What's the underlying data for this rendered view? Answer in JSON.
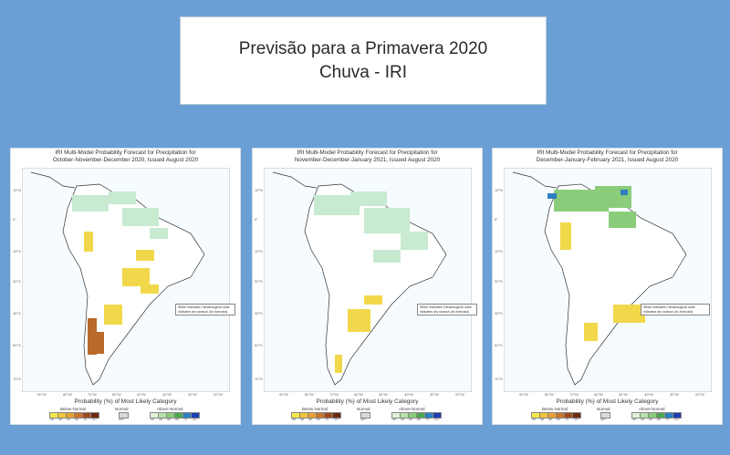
{
  "title": {
    "line1": "Previsão para a Primavera 2020",
    "line2": "Chuva - IRI"
  },
  "panels": [
    {
      "header1": "IRI Multi-Model Probability Forecast for Precipitation for",
      "header2": "October-November-December 2020, Issued August 2020",
      "caption": "Probability (%) of Most Likely Category",
      "note1": "White indicates Climatological odds",
      "note2": "indicates dry season (no forecast)"
    },
    {
      "header1": "IRI Multi-Model Probability Forecast for Precipitation for",
      "header2": "November-December-January 2021, Issued August 2020",
      "caption": "Probability (%) of Most Likely Category",
      "note1": "White indicates Climatological odds",
      "note2": "indicates dry season (no forecast)"
    },
    {
      "header1": "IRI Multi-Model Probability Forecast for Precipitation for",
      "header2": "December-January-February 2021, Issued August 2020",
      "caption": "Probability (%) of Most Likely Category",
      "note1": "White indicates Climatological odds",
      "note2": "indicates dry season (no forecast)"
    }
  ],
  "axes": {
    "lat_labels": [
      "15°N",
      "0°",
      "15°S",
      "30°S",
      "45°S",
      "60°S",
      "75°S"
    ],
    "lon_labels": [
      "90°W",
      "80°W",
      "70°W",
      "60°W",
      "50°W",
      "40°W",
      "30°W",
      "20°W"
    ]
  },
  "legend": {
    "below_label": "Below Normal",
    "normal_label": "Normal",
    "above_label": "Above Normal",
    "below_ticks": [
      "40",
      "45",
      "50",
      "60",
      "70",
      "75+"
    ],
    "normal_ticks": [
      "45+"
    ],
    "above_ticks": [
      "40",
      "45",
      "50",
      "60",
      "70",
      "75+"
    ],
    "below_colors": [
      "#f5e94a",
      "#f0c63a",
      "#e8a232",
      "#c9742a",
      "#9e4a1e",
      "#6e2a10"
    ],
    "normal_color": "#d9d9d9",
    "above_colors": [
      "#dff2d8",
      "#b8e2a8",
      "#8bcc7b",
      "#4fa84f",
      "#2e7fbf",
      "#1a3fb0"
    ]
  }
}
